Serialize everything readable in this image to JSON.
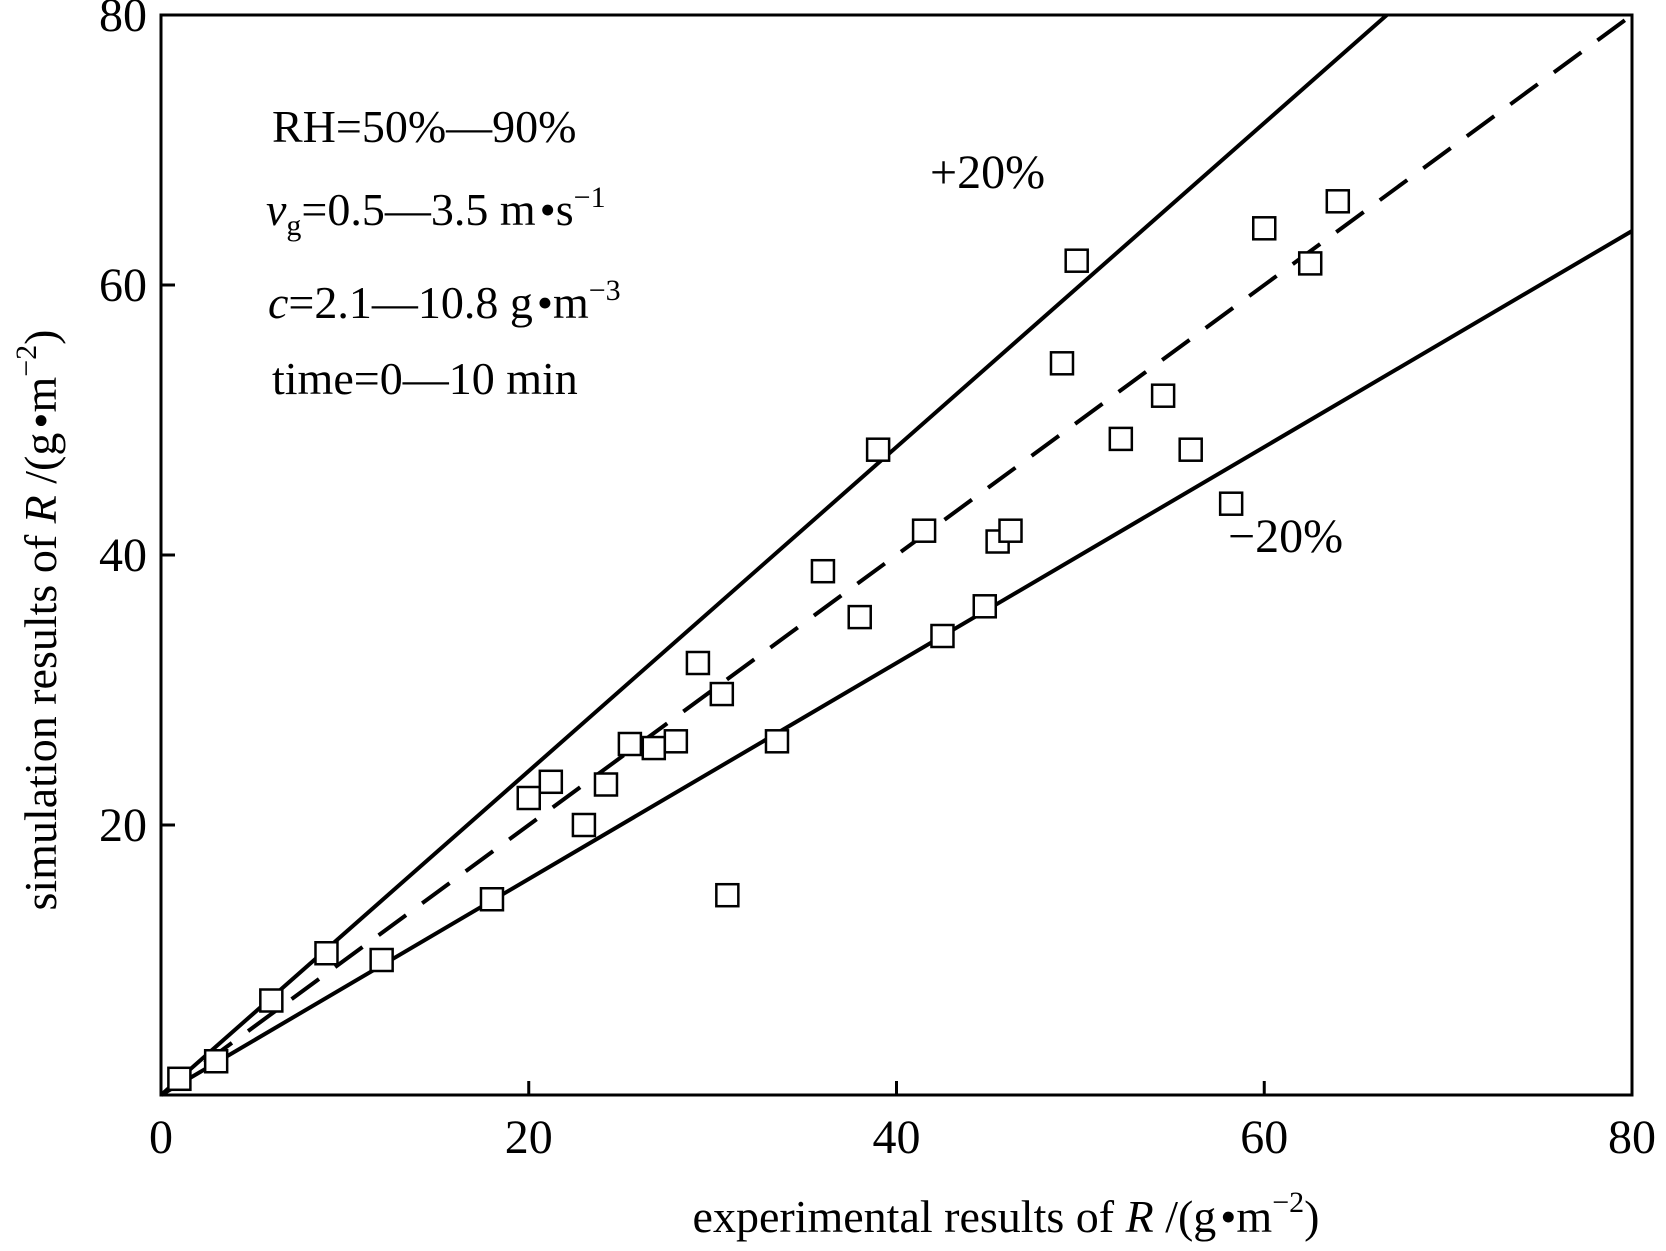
{
  "chart_data": {
    "type": "scatter",
    "title": "",
    "xlabel": {
      "prefix": "experimental results of ",
      "var": "R",
      "sep": " /(g",
      "unit_mid": "m",
      "unit_exp": "−2",
      "suffix": ")"
    },
    "ylabel": {
      "prefix": "simulation results of ",
      "var": "R",
      "sep": " /(g",
      "unit_mid": "m",
      "unit_exp": "−2",
      "suffix": ")"
    },
    "xlim": [
      0,
      80
    ],
    "ylim": [
      0,
      80
    ],
    "xticks": [
      0,
      20,
      40,
      60,
      80
    ],
    "yticks": [
      20,
      40,
      60,
      80
    ],
    "tick_labels_x": [
      "0",
      "20",
      "40",
      "60",
      "80"
    ],
    "tick_labels_y": [
      "20",
      "40",
      "60",
      "80"
    ],
    "grid": false,
    "annotations": {
      "rh": "RH=50%—90%",
      "vg_var": "v",
      "vg_sub": "g",
      "vg_text": "=0.5—3.5 m",
      "vg_unit": "s",
      "vg_exp": "−1",
      "c_var": "c",
      "c_text": "=2.1—10.8 g",
      "c_unit": "m",
      "c_exp": "−3",
      "time": "time=0—10 min"
    },
    "reference_lines": [
      {
        "name": "+20%",
        "label": "+20%",
        "slope": 1.2,
        "style": "solid"
      },
      {
        "name": "y=x",
        "label": "",
        "slope": 1.0,
        "style": "dashed"
      },
      {
        "name": "-20%",
        "label": "−20%",
        "slope": 0.8,
        "style": "solid"
      }
    ],
    "series": [
      {
        "name": "data",
        "marker": "open-square",
        "points": [
          [
            1.0,
            1.2
          ],
          [
            3.0,
            2.5
          ],
          [
            6.0,
            7.0
          ],
          [
            9.0,
            10.5
          ],
          [
            12.0,
            10.0
          ],
          [
            18.0,
            14.5
          ],
          [
            20.0,
            22.0
          ],
          [
            21.2,
            23.2
          ],
          [
            23.0,
            20.0
          ],
          [
            24.2,
            23.0
          ],
          [
            25.5,
            26.0
          ],
          [
            26.8,
            25.7
          ],
          [
            28.0,
            26.2
          ],
          [
            29.2,
            32.0
          ],
          [
            30.5,
            29.7
          ],
          [
            30.8,
            14.8
          ],
          [
            33.5,
            26.2
          ],
          [
            36.0,
            38.8
          ],
          [
            38.0,
            35.4
          ],
          [
            39.0,
            47.8
          ],
          [
            41.5,
            41.8
          ],
          [
            42.5,
            34.0
          ],
          [
            44.8,
            36.2
          ],
          [
            45.5,
            41.0
          ],
          [
            46.2,
            41.8
          ],
          [
            49.0,
            54.2
          ],
          [
            49.8,
            61.8
          ],
          [
            52.2,
            48.6
          ],
          [
            54.5,
            51.8
          ],
          [
            56.0,
            47.8
          ],
          [
            58.2,
            43.8
          ],
          [
            60.0,
            64.2
          ],
          [
            62.5,
            61.6
          ],
          [
            64.0,
            66.2
          ]
        ]
      }
    ]
  }
}
